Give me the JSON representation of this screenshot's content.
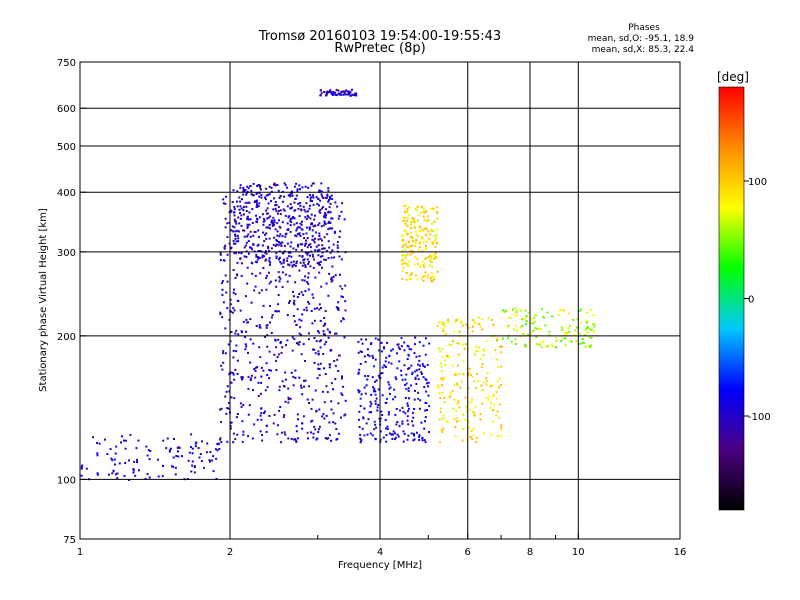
{
  "chart_data": {
    "type": "scatter",
    "title": "Tromsø 20160103 19:54:00-19:55:43",
    "subtitle": "RwPretec (8p)",
    "xlabel": "Frequency [MHz]",
    "ylabel": "Stationary phase Virtual Height [km]",
    "xscale": "log2",
    "yscale": "log",
    "xlim": [
      1,
      16
    ],
    "ylim": [
      75,
      750
    ],
    "xticks": [
      1,
      2,
      4,
      6,
      8,
      10,
      16
    ],
    "xtick_labels": [
      "1",
      "2",
      "4",
      "6",
      "8",
      "10",
      "16"
    ],
    "x_minor_ticks": [
      3,
      5,
      7,
      9
    ],
    "yticks": [
      75,
      100,
      200,
      300,
      400,
      500,
      600,
      750
    ],
    "ytick_labels": [
      "75",
      "100",
      "200",
      "300",
      "400",
      "500",
      "600",
      "750"
    ],
    "grid": true,
    "stats": {
      "title": "Phases",
      "lines": [
        "mean, sd,O: -95.1, 18.9",
        "mean, sd,X: 85.3, 22.4"
      ]
    },
    "colorbar": {
      "label": "[deg]",
      "range": [
        -180,
        180
      ],
      "ticks": [
        100,
        0,
        -100
      ],
      "tick_labels": [
        "100",
        "0",
        "-100"
      ],
      "colors": [
        "#000000",
        "#4b0082",
        "#0000ff",
        "#00c8ff",
        "#00ff00",
        "#ffff00",
        "#ff8c00",
        "#ff0000"
      ]
    },
    "series_summary": [
      {
        "description_ranges": "low trace",
        "freq_mhz": [
          1.0,
          1.9
        ],
        "height_km": [
          100,
          125
        ],
        "phase_deg": -100
      },
      {
        "freq_mhz": [
          1.9,
          3.4
        ],
        "height_km": [
          120,
          400
        ],
        "phase_deg": -100
      },
      {
        "freq_mhz": [
          2.0,
          3.2
        ],
        "height_km": [
          280,
          420
        ],
        "phase_deg": -100
      },
      {
        "freq_mhz": [
          3.0,
          3.6
        ],
        "height_km": [
          640,
          660
        ],
        "phase_deg": -100
      },
      {
        "freq_mhz": [
          3.6,
          5.0
        ],
        "height_km": [
          120,
          200
        ],
        "phase_deg": -90
      },
      {
        "freq_mhz": [
          4.4,
          5.2
        ],
        "height_km": [
          260,
          380
        ],
        "phase_deg": 90
      },
      {
        "freq_mhz": [
          5.2,
          7.0
        ],
        "height_km": [
          120,
          220
        ],
        "phase_deg": 90
      },
      {
        "freq_mhz": [
          7.0,
          10.8
        ],
        "height_km": [
          190,
          230
        ],
        "phase_deg": 60
      }
    ]
  }
}
